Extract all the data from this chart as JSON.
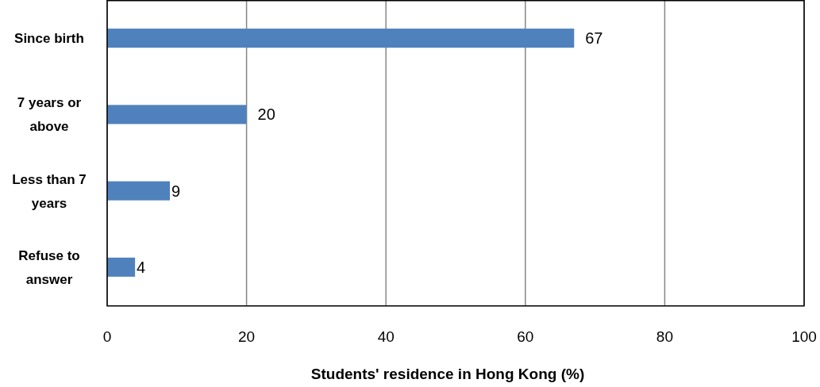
{
  "chart_data": {
    "type": "bar",
    "orientation": "horizontal",
    "xlabel": "Students' residence in Hong Kong (%)",
    "categories": [
      "Since birth",
      "7 years or above",
      "Less than 7 years",
      "Refuse to answer"
    ],
    "values": [
      67,
      20,
      9,
      4
    ],
    "color": "#4f81bd",
    "xlim": [
      0,
      100
    ],
    "xticks": [
      0,
      20,
      40,
      60,
      80,
      100
    ],
    "grid": "x",
    "data_labels": true
  }
}
